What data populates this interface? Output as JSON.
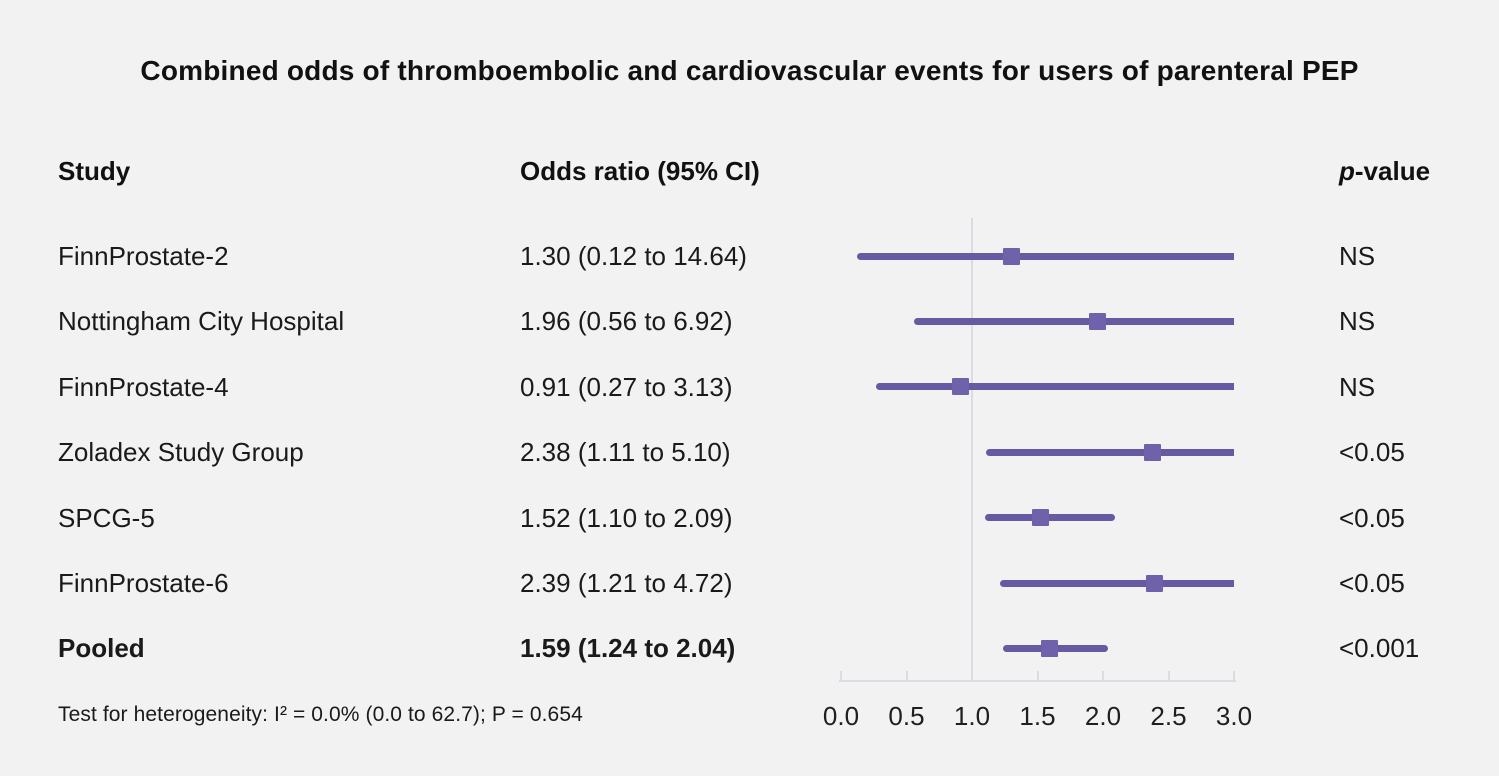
{
  "title": "Combined odds of thromboembolic and cardiovascular events for users of parenteral PEP",
  "header": {
    "study": "Study",
    "odds_ratio": "Odds ratio (95% CI)",
    "p_italic": "p",
    "p_rest": "-value"
  },
  "footer": "Test for heterogeneity: I² = 0.0% (0.0 to 62.7); P = 0.654",
  "chart_data": {
    "type": "forest",
    "title": "Combined odds of thromboembolic and cardiovascular events for users of parenteral PEP",
    "xlim": [
      0,
      3
    ],
    "x_ticks": [
      0.0,
      0.5,
      1.0,
      1.5,
      2.0,
      2.5,
      3.0
    ],
    "x_tick_labels": [
      "0.0",
      "0.5",
      "1.0",
      "1.5",
      "2.0",
      "2.5",
      "3.0"
    ],
    "reference_line": 1.0,
    "grid": false,
    "legend": "none",
    "rows": [
      {
        "study": "FinnProstate-2",
        "or": 1.3,
        "ci_low": 0.12,
        "ci_high": 14.64,
        "or_label": "1.30 (0.12 to 14.64)",
        "p_value": "NS",
        "bold": false
      },
      {
        "study": "Nottingham City Hospital",
        "or": 1.96,
        "ci_low": 0.56,
        "ci_high": 6.92,
        "or_label": "1.96 (0.56 to 6.92)",
        "p_value": "NS",
        "bold": false
      },
      {
        "study": "FinnProstate-4",
        "or": 0.91,
        "ci_low": 0.27,
        "ci_high": 3.13,
        "or_label": "0.91 (0.27 to 3.13)",
        "p_value": "NS",
        "bold": false
      },
      {
        "study": "Zoladex Study Group",
        "or": 2.38,
        "ci_low": 1.11,
        "ci_high": 5.1,
        "or_label": "2.38 (1.11 to 5.10)",
        "p_value": "<0.05",
        "bold": false
      },
      {
        "study": "SPCG-5",
        "or": 1.52,
        "ci_low": 1.1,
        "ci_high": 2.09,
        "or_label": "1.52 (1.10 to 2.09)",
        "p_value": "<0.05",
        "bold": false
      },
      {
        "study": "FinnProstate-6",
        "or": 2.39,
        "ci_low": 1.21,
        "ci_high": 4.72,
        "or_label": "2.39 (1.21 to 4.72)",
        "p_value": "<0.05",
        "bold": false
      },
      {
        "study": "Pooled",
        "or": 1.59,
        "ci_low": 1.24,
        "ci_high": 2.04,
        "or_label": "1.59 (1.24 to 2.04)",
        "p_value": "<0.001",
        "bold": true
      }
    ],
    "colors": {
      "background": "#f2f2f2",
      "text": "#1a1a1a",
      "ci_line": "#675aa3",
      "marker": "#7061ab",
      "reference_line": "#d9dce2",
      "axis": "#d9dce2"
    }
  }
}
